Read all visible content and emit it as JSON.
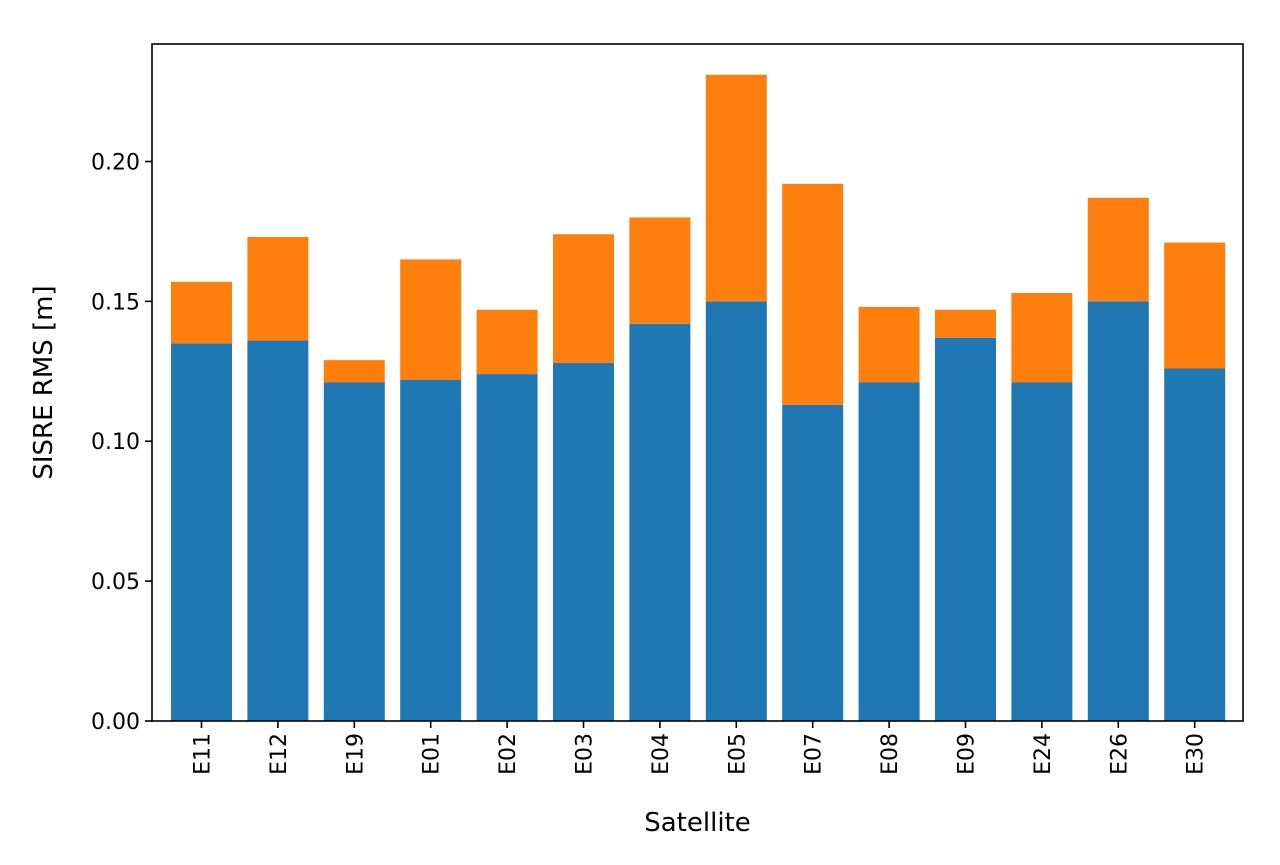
{
  "chart_data": {
    "type": "bar",
    "stacked": true,
    "title": "",
    "xlabel": "Satellite",
    "ylabel": "SISRE RMS [m]",
    "ylim": [
      0,
      0.242
    ],
    "yticks": [
      "0.00",
      "0.05",
      "0.10",
      "0.15",
      "0.20"
    ],
    "ytick_values": [
      0,
      0.05,
      0.1,
      0.15,
      0.2
    ],
    "categories": [
      "E11",
      "E12",
      "E19",
      "E01",
      "E02",
      "E03",
      "E04",
      "E05",
      "E07",
      "E08",
      "E09",
      "E24",
      "E26",
      "E30"
    ],
    "series": [
      {
        "color": "#1f77b4",
        "values": [
          0.135,
          0.136,
          0.121,
          0.122,
          0.124,
          0.128,
          0.142,
          0.15,
          0.113,
          0.121,
          0.137,
          0.121,
          0.15,
          0.126
        ]
      },
      {
        "color": "#ff7f0e",
        "values": [
          0.022,
          0.037,
          0.008,
          0.043,
          0.023,
          0.046,
          0.038,
          0.081,
          0.079,
          0.027,
          0.01,
          0.032,
          0.037,
          0.045
        ]
      }
    ],
    "grid": false,
    "legend": "none"
  }
}
